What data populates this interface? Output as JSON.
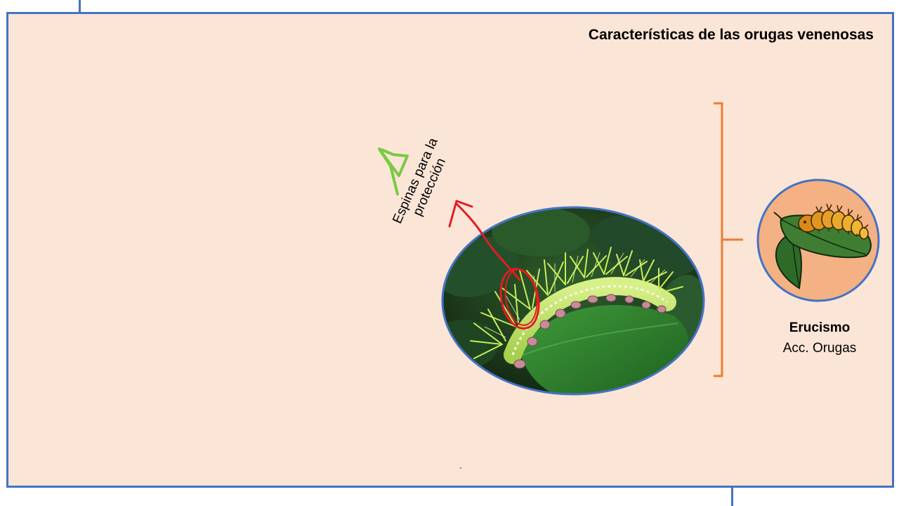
{
  "slide": {
    "title": "Características de las orugas venenosas",
    "annotation_label": "Espinas para la protección",
    "caption_title": "Erucismo",
    "caption_subtitle": "Acc. Orugas",
    "tick_char": "`"
  },
  "colors": {
    "background": "#fbe5d6",
    "frame": "#4472c4",
    "bracket": "#ed7d31",
    "arrow": "#e31b23",
    "highlight_mark": "#7ac943",
    "icon_circle_fill": "#f4b183"
  },
  "icons": {
    "photo": "hairy-caterpillar-photo",
    "illustration": "caterpillar-on-leaf-icon"
  }
}
